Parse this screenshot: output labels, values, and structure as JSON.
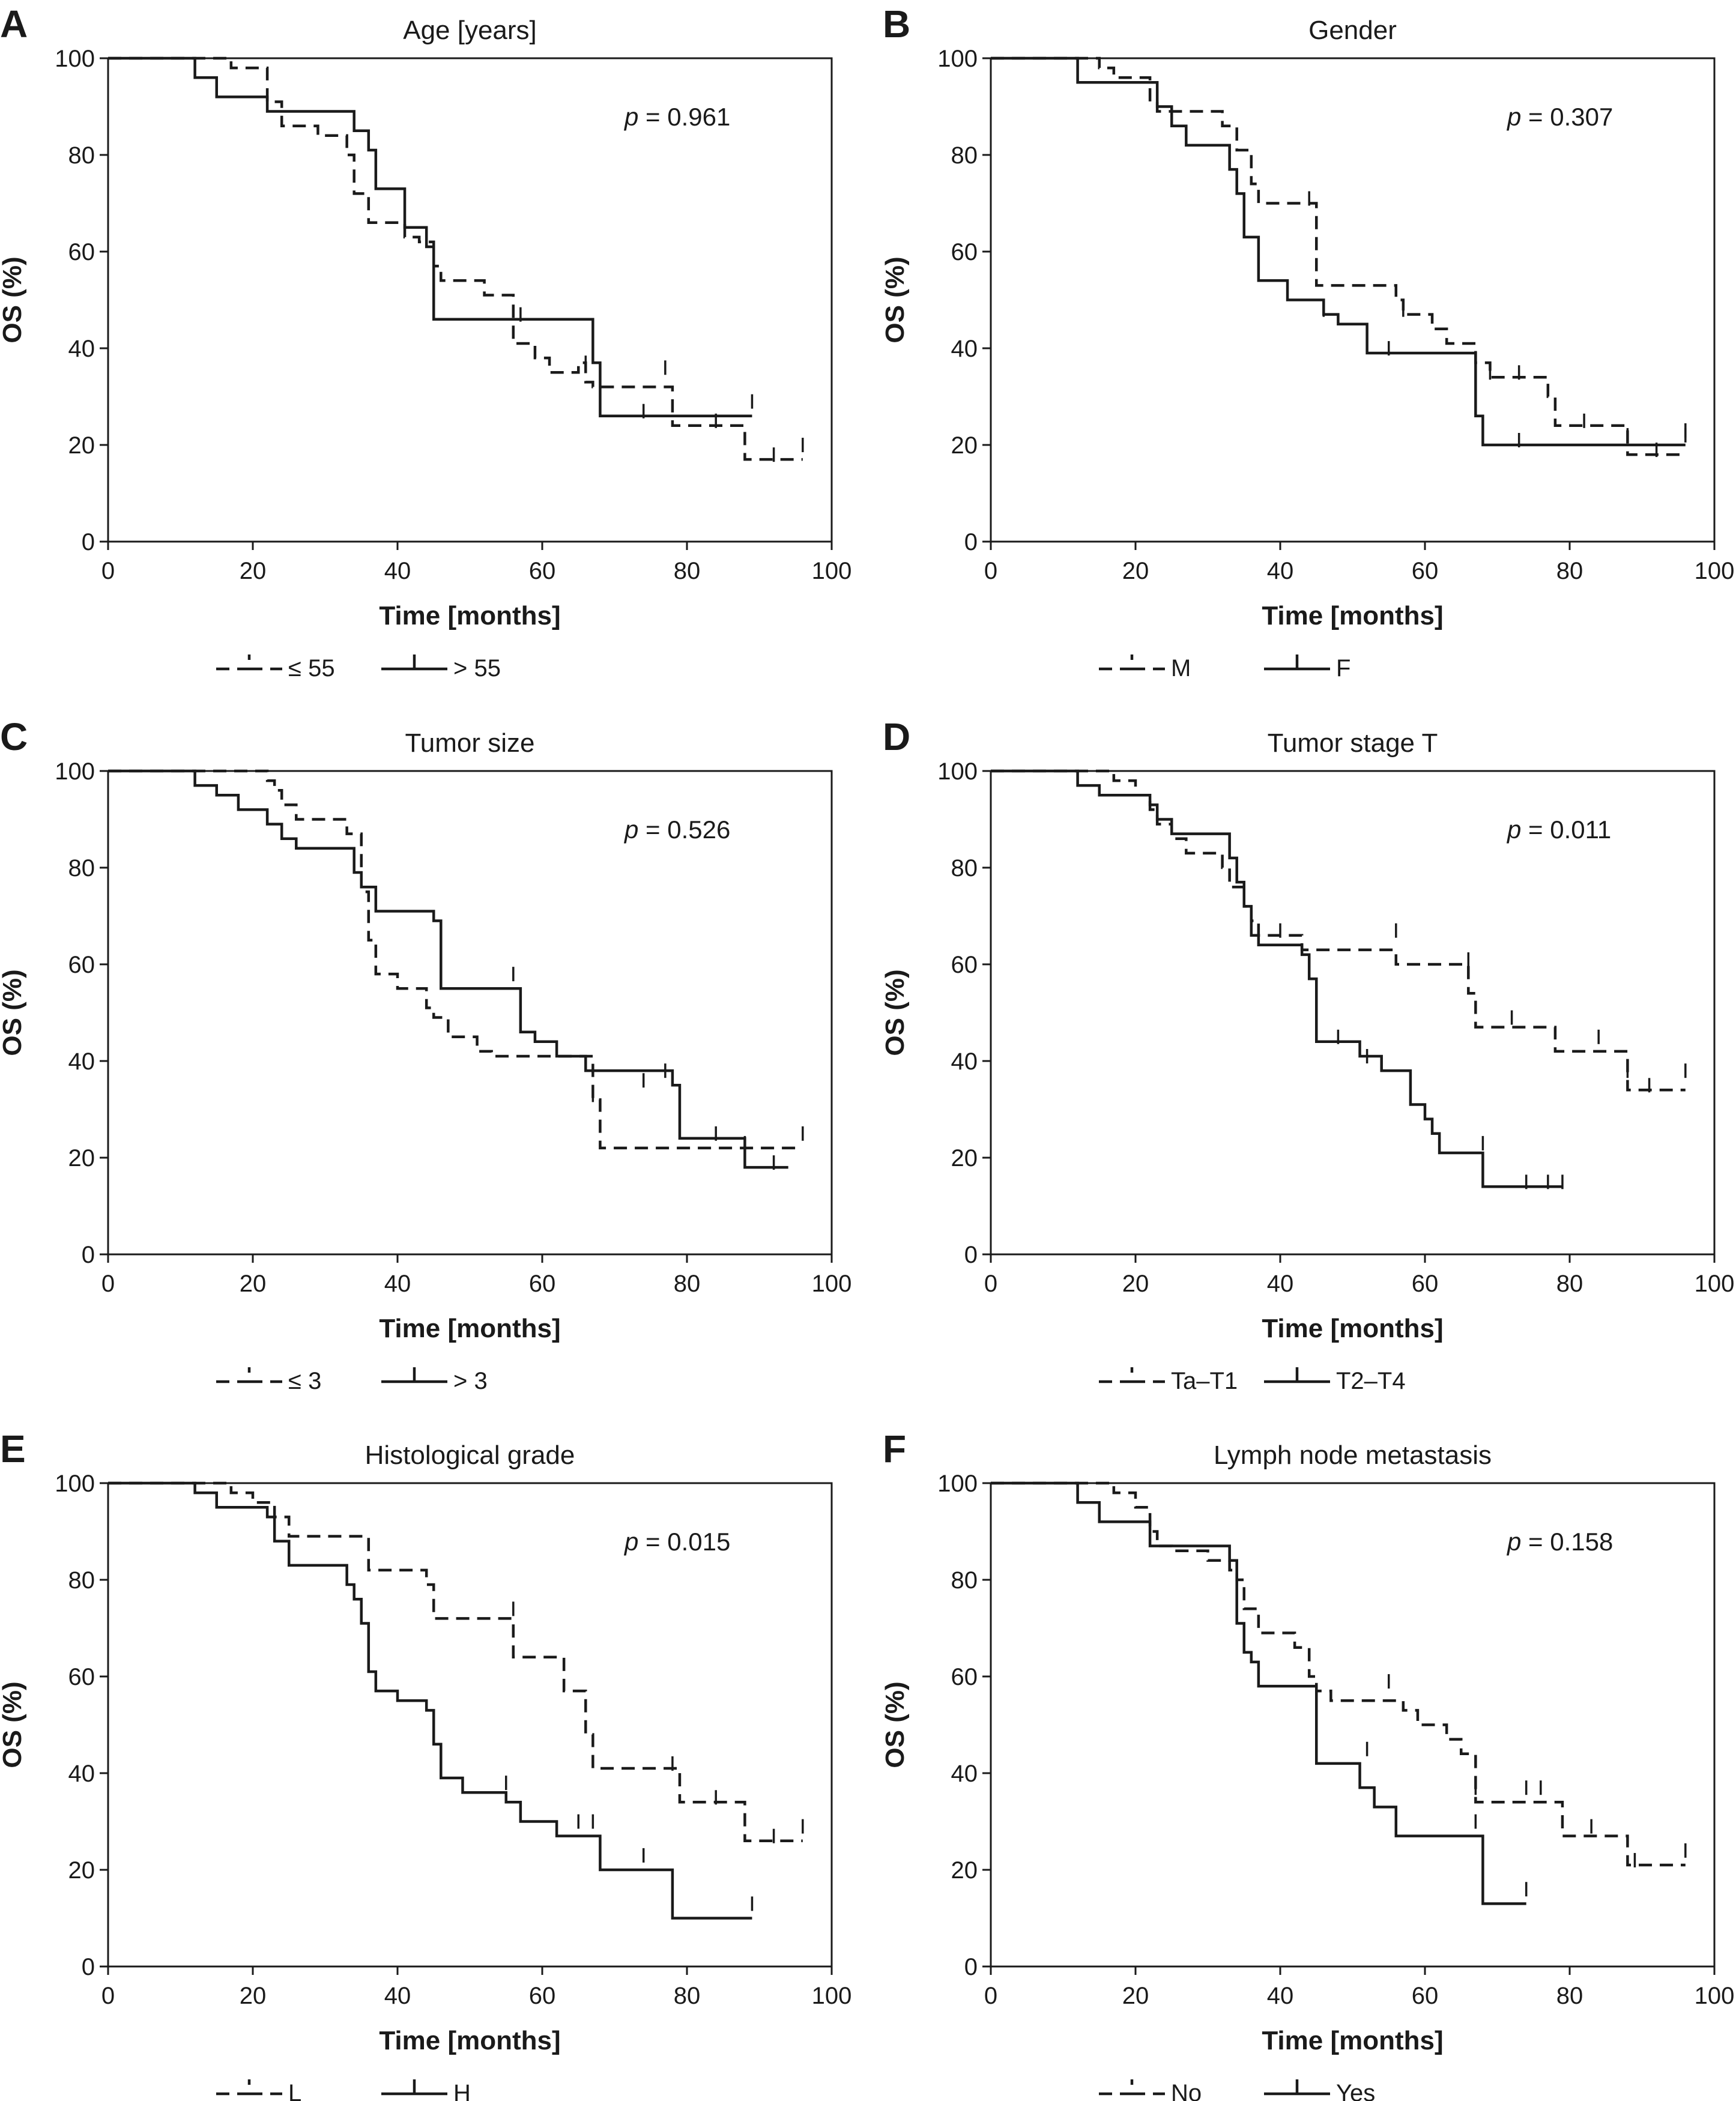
{
  "chart_data": [
    {
      "type": "line",
      "panel": "A",
      "title": "Age [years]",
      "p_value": "0.961",
      "xlabel": "Time [months]",
      "ylabel": "OS (%)",
      "xlim": [
        0,
        100
      ],
      "ylim": [
        0,
        100
      ],
      "xticks": [
        0,
        20,
        40,
        60,
        80,
        100
      ],
      "yticks": [
        0,
        20,
        40,
        60,
        80,
        100
      ],
      "legend_position": "bottom",
      "series": [
        {
          "name": "≤ 55",
          "style": "dashed",
          "x": [
            0,
            17,
            22,
            24,
            29,
            33,
            34,
            36,
            37,
            41,
            43,
            45,
            46,
            51,
            52,
            55,
            56,
            59,
            61,
            63,
            65,
            66,
            67,
            69,
            72,
            77,
            78,
            80,
            83,
            88,
            96
          ],
          "y": [
            100,
            98,
            91,
            86,
            84,
            80,
            72,
            66,
            66,
            63,
            62,
            57,
            54,
            54,
            51,
            51,
            41,
            38,
            35,
            35,
            37,
            33,
            32,
            32,
            32,
            32,
            24,
            24,
            24,
            17,
            17
          ],
          "censored": [
            [
              66,
              36
            ],
            [
              77,
              35
            ],
            [
              84,
              24
            ],
            [
              92,
              17
            ],
            [
              96,
              19
            ]
          ]
        },
        {
          "name": "> 55",
          "style": "solid",
          "x": [
            0,
            12,
            15,
            22,
            33,
            34,
            36,
            37,
            41,
            44,
            45,
            57,
            66,
            67,
            68,
            89
          ],
          "y": [
            100,
            96,
            92,
            89,
            89,
            85,
            81,
            73,
            65,
            61,
            46,
            46,
            46,
            37,
            26,
            26
          ],
          "censored": [
            [
              57,
              46
            ],
            [
              74,
              26
            ],
            [
              89,
              28
            ]
          ]
        }
      ]
    },
    {
      "type": "line",
      "panel": "B",
      "title": "Gender",
      "p_value": "0.307",
      "xlabel": "Time [months]",
      "ylabel": "OS (%)",
      "xlim": [
        0,
        100
      ],
      "ylim": [
        0,
        100
      ],
      "xticks": [
        0,
        20,
        40,
        60,
        80,
        100
      ],
      "yticks": [
        0,
        20,
        40,
        60,
        80,
        100
      ],
      "legend_position": "bottom",
      "series": [
        {
          "name": "M",
          "style": "dashed",
          "x": [
            0,
            15,
            17,
            22,
            23,
            24,
            26,
            32,
            34,
            36,
            37,
            44,
            45,
            55,
            56,
            57,
            61,
            63,
            67,
            69,
            77,
            78,
            88,
            92,
            96
          ],
          "y": [
            100,
            98,
            96,
            91,
            89,
            89,
            89,
            86,
            81,
            74,
            70,
            70,
            53,
            53,
            50,
            47,
            44,
            41,
            37,
            34,
            30,
            24,
            18,
            18,
            18
          ],
          "censored": [
            [
              44,
              70
            ],
            [
              57,
              47
            ],
            [
              69,
              34
            ],
            [
              73,
              34
            ],
            [
              82,
              24
            ],
            [
              88,
              21
            ],
            [
              92,
              18
            ],
            [
              96,
              21
            ]
          ]
        },
        {
          "name": "F",
          "style": "solid",
          "x": [
            0,
            12,
            22,
            23,
            25,
            27,
            33,
            34,
            35,
            37,
            41,
            45,
            46,
            48,
            52,
            60,
            66,
            67,
            68,
            96
          ],
          "y": [
            100,
            95,
            95,
            90,
            86,
            82,
            77,
            72,
            63,
            54,
            50,
            50,
            47,
            45,
            39,
            39,
            39,
            26,
            20,
            20
          ],
          "censored": [
            [
              46,
              47
            ],
            [
              55,
              39
            ],
            [
              73,
              20
            ],
            [
              96,
              22
            ]
          ]
        }
      ]
    },
    {
      "type": "line",
      "panel": "C",
      "title": "Tumor size",
      "p_value": "0.526",
      "xlabel": "Time [months]",
      "ylabel": "OS (%)",
      "xlim": [
        0,
        100
      ],
      "ylim": [
        0,
        100
      ],
      "xticks": [
        0,
        20,
        40,
        60,
        80,
        100
      ],
      "yticks": [
        0,
        20,
        40,
        60,
        80,
        100
      ],
      "legend_position": "bottom",
      "series": [
        {
          "name": "≤ 3",
          "style": "dashed",
          "x": [
            0,
            22,
            23,
            24,
            26,
            33,
            35,
            36,
            37,
            40,
            44,
            45,
            47,
            51,
            53,
            66,
            67,
            68,
            96
          ],
          "y": [
            100,
            98,
            96,
            93,
            90,
            87,
            75,
            65,
            58,
            55,
            51,
            49,
            45,
            42,
            41,
            41,
            32,
            22,
            22
          ],
          "censored": [
            [
              67,
              32
            ],
            [
              88,
              22
            ],
            [
              96,
              24
            ]
          ]
        },
        {
          "name": "> 3",
          "style": "solid",
          "x": [
            0,
            12,
            15,
            18,
            22,
            24,
            26,
            28,
            33,
            34,
            35,
            36,
            37,
            45,
            46,
            56,
            57,
            59,
            62,
            65,
            66,
            78,
            79,
            82,
            88,
            92,
            94
          ],
          "y": [
            100,
            97,
            95,
            92,
            89,
            86,
            84,
            84,
            84,
            79,
            76,
            76,
            71,
            69,
            55,
            55,
            46,
            44,
            41,
            41,
            38,
            35,
            24,
            24,
            18,
            18,
            18
          ],
          "censored": [
            [
              56,
              57
            ],
            [
              74,
              35
            ],
            [
              77,
              37
            ],
            [
              84,
              24
            ],
            [
              92,
              18
            ]
          ]
        }
      ]
    },
    {
      "type": "line",
      "panel": "D",
      "title": "Tumor stage T",
      "p_value": "0.011",
      "xlabel": "Time [months]",
      "ylabel": "OS (%)",
      "xlim": [
        0,
        100
      ],
      "ylim": [
        0,
        100
      ],
      "xticks": [
        0,
        20,
        40,
        60,
        80,
        100
      ],
      "yticks": [
        0,
        20,
        40,
        60,
        80,
        100
      ],
      "legend_position": "bottom",
      "series": [
        {
          "name": "Ta–T1",
          "style": "dashed",
          "x": [
            0,
            17,
            20,
            22,
            23,
            25,
            27,
            32,
            33,
            35,
            36,
            37,
            43,
            56,
            65,
            66,
            67,
            72,
            78,
            88,
            96
          ],
          "y": [
            100,
            98,
            95,
            92,
            89,
            86,
            83,
            80,
            76,
            72,
            69,
            66,
            63,
            60,
            60,
            54,
            47,
            47,
            42,
            34,
            34
          ],
          "censored": [
            [
              56,
              66
            ],
            [
              66,
              60
            ],
            [
              72,
              48
            ],
            [
              84,
              44
            ],
            [
              88,
              37
            ],
            [
              91,
              34
            ],
            [
              96,
              37
            ]
          ]
        },
        {
          "name": "T2–T4",
          "style": "solid",
          "x": [
            0,
            12,
            15,
            22,
            23,
            25,
            27,
            33,
            34,
            35,
            36,
            37,
            41,
            43,
            44,
            45,
            51,
            54,
            56,
            58,
            60,
            61,
            62,
            67,
            68,
            79
          ],
          "y": [
            100,
            97,
            95,
            93,
            90,
            87,
            87,
            82,
            77,
            72,
            66,
            64,
            64,
            62,
            57,
            44,
            41,
            38,
            38,
            31,
            28,
            25,
            21,
            21,
            14,
            14
          ],
          "censored": [
            [
              40,
              66
            ],
            [
              48,
              44
            ],
            [
              52,
              40
            ],
            [
              68,
              22
            ],
            [
              74,
              14
            ],
            [
              77,
              14
            ],
            [
              79,
              14
            ]
          ]
        }
      ]
    },
    {
      "type": "line",
      "panel": "E",
      "title": "Histological grade",
      "p_value": "0.015",
      "xlabel": "Time [months]",
      "ylabel": "OS (%)",
      "xlim": [
        0,
        100
      ],
      "ylim": [
        0,
        100
      ],
      "xticks": [
        0,
        20,
        40,
        60,
        80,
        100
      ],
      "yticks": [
        0,
        20,
        40,
        60,
        80,
        100
      ],
      "legend_position": "bottom",
      "series": [
        {
          "name": "L",
          "style": "dashed",
          "x": [
            0,
            17,
            20,
            23,
            25,
            30,
            34,
            36,
            44,
            45,
            55,
            56,
            61,
            63,
            66,
            67,
            78,
            79,
            88,
            96
          ],
          "y": [
            100,
            98,
            96,
            93,
            89,
            89,
            89,
            82,
            79,
            72,
            72,
            64,
            64,
            57,
            48,
            41,
            41,
            34,
            26,
            26
          ],
          "censored": [
            [
              56,
              73
            ],
            [
              78,
              41
            ],
            [
              84,
              34
            ],
            [
              92,
              26
            ],
            [
              96,
              28
            ]
          ]
        },
        {
          "name": "H",
          "style": "solid",
          "x": [
            0,
            12,
            15,
            22,
            23,
            25,
            30,
            33,
            34,
            35,
            36,
            37,
            40,
            44,
            45,
            46,
            49,
            53,
            55,
            57,
            62,
            65,
            67,
            68,
            74,
            78,
            89
          ],
          "y": [
            100,
            98,
            95,
            93,
            88,
            83,
            83,
            79,
            76,
            71,
            61,
            57,
            55,
            53,
            46,
            39,
            36,
            36,
            34,
            30,
            27,
            27,
            27,
            20,
            20,
            10,
            10
          ],
          "censored": [
            [
              55,
              37
            ],
            [
              65,
              29
            ],
            [
              67,
              29
            ],
            [
              74,
              22
            ],
            [
              89,
              12
            ]
          ]
        }
      ]
    },
    {
      "type": "line",
      "panel": "F",
      "title": "Lymph node metastasis",
      "p_value": "0.158",
      "xlabel": "Time [months]",
      "ylabel": "OS (%)",
      "xlim": [
        0,
        100
      ],
      "ylim": [
        0,
        100
      ],
      "xticks": [
        0,
        20,
        40,
        60,
        80,
        100
      ],
      "yticks": [
        0,
        20,
        40,
        60,
        80,
        100
      ],
      "legend_position": "bottom",
      "series": [
        {
          "name": "No",
          "style": "dashed",
          "x": [
            0,
            17,
            20,
            22,
            23,
            25,
            30,
            33,
            34,
            35,
            37,
            42,
            44,
            45,
            47,
            51,
            55,
            57,
            59,
            63,
            65,
            67,
            77,
            79,
            88,
            96
          ],
          "y": [
            100,
            98,
            95,
            90,
            87,
            86,
            84,
            82,
            80,
            74,
            69,
            66,
            60,
            57,
            55,
            55,
            55,
            53,
            50,
            47,
            44,
            34,
            34,
            27,
            21,
            21
          ],
          "censored": [
            [
              55,
              58
            ],
            [
              67,
              36
            ],
            [
              74,
              36
            ],
            [
              76,
              36
            ],
            [
              83,
              28
            ],
            [
              89,
              21
            ],
            [
              96,
              23
            ]
          ]
        },
        {
          "name": "Yes",
          "style": "solid",
          "x": [
            0,
            12,
            15,
            22,
            33,
            34,
            35,
            36,
            37,
            44,
            45,
            51,
            53,
            56,
            67,
            68,
            74
          ],
          "y": [
            100,
            96,
            92,
            87,
            84,
            71,
            65,
            63,
            58,
            58,
            42,
            37,
            33,
            27,
            27,
            13,
            13
          ],
          "censored": [
            [
              52,
              44
            ],
            [
              67,
              29
            ],
            [
              74,
              15
            ]
          ]
        }
      ]
    }
  ]
}
